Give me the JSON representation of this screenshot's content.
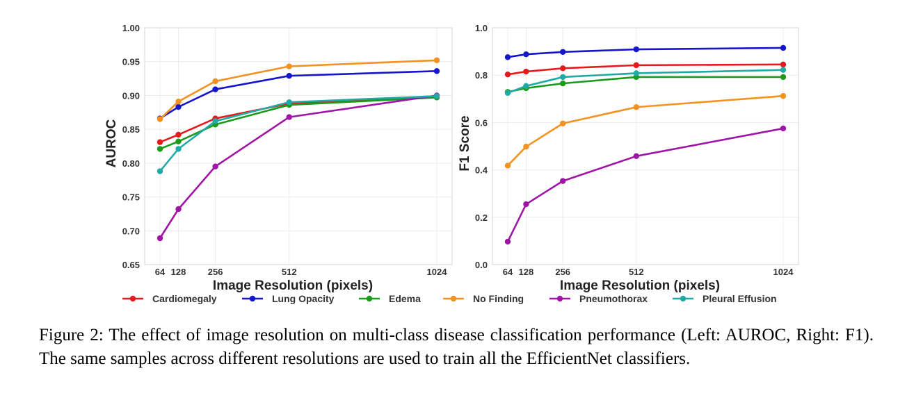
{
  "chart_data": [
    {
      "type": "line",
      "panel": "left",
      "x": [
        64,
        128,
        256,
        512,
        1024
      ],
      "xticks": [
        "64",
        "128",
        "256",
        "512",
        "1024"
      ],
      "xlabel": "Image Resolution (pixels)",
      "ylabel": "AUROC",
      "ylim": [
        0.65,
        1.0
      ],
      "yticks": [
        "0.65",
        "0.70",
        "0.75",
        "0.80",
        "0.85",
        "0.90",
        "0.95",
        "1.00"
      ],
      "ytick_values": [
        0.65,
        0.7,
        0.75,
        0.8,
        0.85,
        0.9,
        0.95,
        1.0
      ],
      "grid": true,
      "series": [
        {
          "name": "Cardiomegaly",
          "color": "#e41a1c",
          "values": [
            0.831,
            0.842,
            0.866,
            0.888,
            0.899
          ]
        },
        {
          "name": "Lung Opacity",
          "color": "#1515cc",
          "values": [
            0.866,
            0.883,
            0.909,
            0.929,
            0.936
          ]
        },
        {
          "name": "Edema",
          "color": "#1a9a1a",
          "values": [
            0.821,
            0.832,
            0.857,
            0.886,
            0.897
          ]
        },
        {
          "name": "No Finding",
          "color": "#f39220",
          "values": [
            0.865,
            0.891,
            0.921,
            0.943,
            0.952
          ]
        },
        {
          "name": "Pneumothorax",
          "color": "#a014a8",
          "values": [
            0.689,
            0.732,
            0.795,
            0.868,
            0.9
          ]
        },
        {
          "name": "Pleural Effusion",
          "color": "#1faaa6",
          "values": [
            0.788,
            0.821,
            0.862,
            0.89,
            0.899
          ]
        }
      ]
    },
    {
      "type": "line",
      "panel": "right",
      "x": [
        64,
        128,
        256,
        512,
        1024
      ],
      "xticks": [
        "64",
        "128",
        "256",
        "512",
        "1024"
      ],
      "xlabel": "Image Resolution (pixels)",
      "ylabel": "F1 Score",
      "ylim": [
        0.0,
        1.0
      ],
      "yticks": [
        "0.0",
        "0.2",
        "0.4",
        "0.6",
        "0.8",
        "1.0"
      ],
      "ytick_values": [
        0.0,
        0.2,
        0.4,
        0.6,
        0.8,
        1.0
      ],
      "grid": true,
      "series": [
        {
          "name": "Cardiomegaly",
          "color": "#e41a1c",
          "values": [
            0.803,
            0.815,
            0.829,
            0.842,
            0.845
          ]
        },
        {
          "name": "Lung Opacity",
          "color": "#1515cc",
          "values": [
            0.876,
            0.888,
            0.898,
            0.909,
            0.915
          ]
        },
        {
          "name": "Edema",
          "color": "#1a9a1a",
          "values": [
            0.729,
            0.745,
            0.765,
            0.792,
            0.792
          ]
        },
        {
          "name": "No Finding",
          "color": "#f39220",
          "values": [
            0.418,
            0.498,
            0.596,
            0.665,
            0.712
          ]
        },
        {
          "name": "Pneumothorax",
          "color": "#a014a8",
          "values": [
            0.097,
            0.255,
            0.353,
            0.458,
            0.575
          ]
        },
        {
          "name": "Pleural Effusion",
          "color": "#1faaa6",
          "values": [
            0.725,
            0.754,
            0.792,
            0.808,
            0.822
          ]
        }
      ]
    }
  ],
  "legend": {
    "placement": "bottom-center",
    "entries": [
      "Cardiomegaly",
      "Lung Opacity",
      "Edema",
      "No Finding",
      "Pneumothorax",
      "Pleural Effusion"
    ]
  },
  "caption": "Figure 2: The effect of image resolution on multi-class disease classification performance (Left: AUROC, Right: F1). The same samples across different resolutions are used to train all the EfficientNet classifiers."
}
